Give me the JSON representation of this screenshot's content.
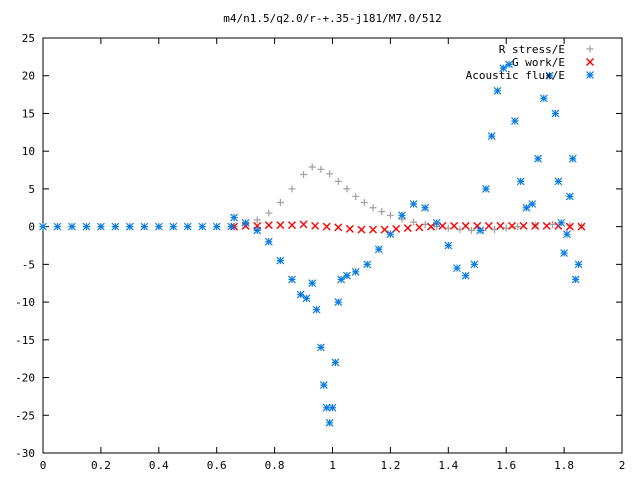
{
  "chart_data": {
    "type": "scatter",
    "title": "m4/n1.5/q2.0/r-+.35-j181/M7.0/512",
    "xlabel": "",
    "ylabel": "",
    "xlim": [
      0,
      2
    ],
    "ylim": [
      -30,
      25
    ],
    "grid": false,
    "legend_position": "top-right",
    "x_ticks": [
      "0",
      "0.2",
      "0.4",
      "0.6",
      "0.8",
      "1",
      "1.2",
      "1.4",
      "1.6",
      "1.8",
      "2"
    ],
    "y_ticks": [
      "25",
      "20",
      "15",
      "10",
      "5",
      "0",
      "-5",
      "-10",
      "-15",
      "-20",
      "-25",
      "-30"
    ],
    "series": [
      {
        "name": "R stress/E",
        "marker": "plus",
        "color": "#a0a0a0",
        "points": [
          [
            0.66,
            0.0
          ],
          [
            0.7,
            0.3
          ],
          [
            0.74,
            0.9
          ],
          [
            0.78,
            1.8
          ],
          [
            0.82,
            3.2
          ],
          [
            0.86,
            5.0
          ],
          [
            0.9,
            6.9
          ],
          [
            0.93,
            7.9
          ],
          [
            0.96,
            7.6
          ],
          [
            0.99,
            7.0
          ],
          [
            1.02,
            6.0
          ],
          [
            1.05,
            5.0
          ],
          [
            1.08,
            4.0
          ],
          [
            1.11,
            3.2
          ],
          [
            1.14,
            2.5
          ],
          [
            1.17,
            2.0
          ],
          [
            1.2,
            1.5
          ],
          [
            1.24,
            1.0
          ],
          [
            1.28,
            0.6
          ],
          [
            1.32,
            0.3
          ],
          [
            1.36,
            0.0
          ],
          [
            1.4,
            -0.2
          ],
          [
            1.44,
            -0.4
          ],
          [
            1.48,
            -0.5
          ],
          [
            1.52,
            -0.5
          ],
          [
            1.56,
            -0.4
          ],
          [
            1.6,
            -0.2
          ],
          [
            1.64,
            0.0
          ],
          [
            1.7,
            0.2
          ],
          [
            1.76,
            0.3
          ],
          [
            1.82,
            0.2
          ],
          [
            1.86,
            0.1
          ]
        ]
      },
      {
        "name": "G work/E",
        "marker": "cross",
        "color": "#ff0000",
        "points": [
          [
            0.66,
            0.0
          ],
          [
            0.7,
            0.1
          ],
          [
            0.74,
            0.1
          ],
          [
            0.78,
            0.2
          ],
          [
            0.82,
            0.2
          ],
          [
            0.86,
            0.2
          ],
          [
            0.9,
            0.3
          ],
          [
            0.94,
            0.1
          ],
          [
            0.98,
            0.0
          ],
          [
            1.02,
            -0.1
          ],
          [
            1.06,
            -0.3
          ],
          [
            1.1,
            -0.4
          ],
          [
            1.14,
            -0.4
          ],
          [
            1.18,
            -0.4
          ],
          [
            1.22,
            -0.3
          ],
          [
            1.26,
            -0.2
          ],
          [
            1.3,
            -0.1
          ],
          [
            1.34,
            0.0
          ],
          [
            1.38,
            0.1
          ],
          [
            1.42,
            0.1
          ],
          [
            1.46,
            0.1
          ],
          [
            1.5,
            0.1
          ],
          [
            1.54,
            0.1
          ],
          [
            1.58,
            0.1
          ],
          [
            1.62,
            0.1
          ],
          [
            1.66,
            0.1
          ],
          [
            1.7,
            0.1
          ],
          [
            1.74,
            0.1
          ],
          [
            1.78,
            0.1
          ],
          [
            1.82,
            0.0
          ],
          [
            1.86,
            0.0
          ]
        ]
      },
      {
        "name": "Acoustic flux/E",
        "marker": "star",
        "color": "#0c7ce0",
        "points": [
          [
            0.0,
            0.0
          ],
          [
            0.05,
            0.0
          ],
          [
            0.1,
            0.0
          ],
          [
            0.15,
            0.0
          ],
          [
            0.2,
            0.0
          ],
          [
            0.25,
            0.0
          ],
          [
            0.3,
            0.0
          ],
          [
            0.35,
            0.0
          ],
          [
            0.4,
            0.0
          ],
          [
            0.45,
            0.0
          ],
          [
            0.5,
            0.0
          ],
          [
            0.55,
            0.0
          ],
          [
            0.6,
            0.0
          ],
          [
            0.65,
            0.0
          ],
          [
            0.66,
            1.2
          ],
          [
            0.7,
            0.5
          ],
          [
            0.74,
            -0.5
          ],
          [
            0.78,
            -2.0
          ],
          [
            0.82,
            -4.5
          ],
          [
            0.86,
            -7.0
          ],
          [
            0.89,
            -9.0
          ],
          [
            0.91,
            -9.5
          ],
          [
            0.93,
            -7.5
          ],
          [
            0.945,
            -11.0
          ],
          [
            0.96,
            -16.0
          ],
          [
            0.97,
            -21.0
          ],
          [
            0.98,
            -24.0
          ],
          [
            0.99,
            -26.0
          ],
          [
            1.0,
            -24.0
          ],
          [
            1.01,
            -18.0
          ],
          [
            1.02,
            -10.0
          ],
          [
            1.03,
            -7.0
          ],
          [
            1.05,
            -6.5
          ],
          [
            1.08,
            -6.0
          ],
          [
            1.12,
            -5.0
          ],
          [
            1.16,
            -3.0
          ],
          [
            1.2,
            -1.0
          ],
          [
            1.24,
            1.5
          ],
          [
            1.28,
            3.0
          ],
          [
            1.32,
            2.5
          ],
          [
            1.36,
            0.5
          ],
          [
            1.4,
            -2.5
          ],
          [
            1.43,
            -5.5
          ],
          [
            1.46,
            -6.5
          ],
          [
            1.49,
            -5.0
          ],
          [
            1.51,
            -0.5
          ],
          [
            1.53,
            5.0
          ],
          [
            1.55,
            12.0
          ],
          [
            1.57,
            18.0
          ],
          [
            1.59,
            21.0
          ],
          [
            1.61,
            21.5
          ],
          [
            1.63,
            14.0
          ],
          [
            1.65,
            6.0
          ],
          [
            1.67,
            2.5
          ],
          [
            1.69,
            3.0
          ],
          [
            1.71,
            9.0
          ],
          [
            1.73,
            17.0
          ],
          [
            1.75,
            20.0
          ],
          [
            1.77,
            15.0
          ],
          [
            1.78,
            6.0
          ],
          [
            1.79,
            0.5
          ],
          [
            1.8,
            -3.5
          ],
          [
            1.81,
            -1.0
          ],
          [
            1.82,
            4.0
          ],
          [
            1.83,
            9.0
          ],
          [
            1.84,
            -7.0
          ],
          [
            1.85,
            -5.0
          ]
        ]
      }
    ]
  }
}
